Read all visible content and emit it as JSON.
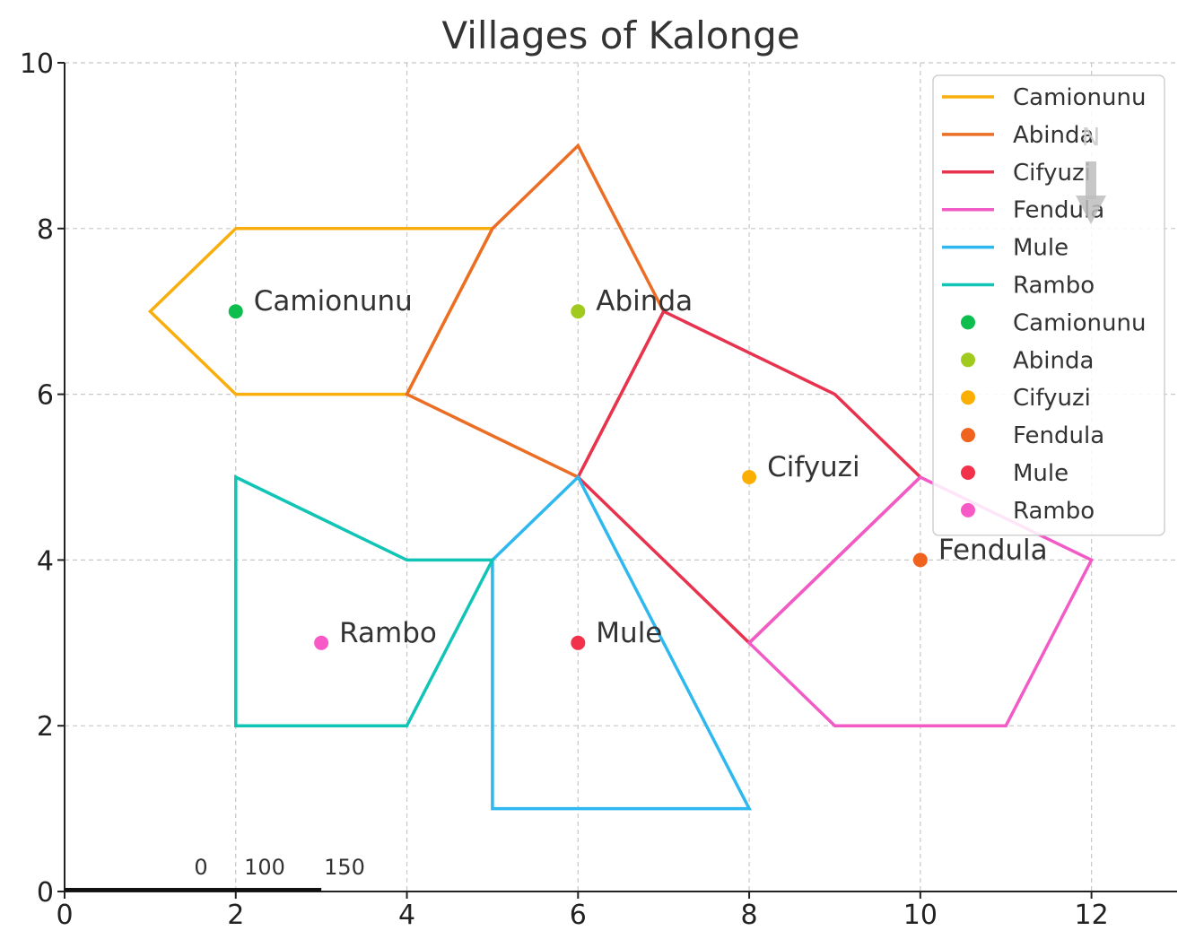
{
  "map": {
    "title": "Villages of Kalonge",
    "x_ticks": [
      "0",
      "2",
      "4",
      "6",
      "8",
      "10",
      "12"
    ],
    "y_ticks": [
      "0",
      "2",
      "4",
      "6",
      "8",
      "10"
    ],
    "xlim": [
      0,
      13
    ],
    "ylim": [
      0,
      10
    ],
    "grid": true,
    "legend_placement": "top-right",
    "compass_label": "N",
    "scale_bar": {
      "labels": [
        "0",
        "100",
        "150"
      ],
      "x_start": 0,
      "x_end": 3
    },
    "regions": [
      {
        "name": "Camionunu",
        "color": "#F9AE0D",
        "polygon": [
          [
            1,
            7
          ],
          [
            2,
            8
          ],
          [
            5,
            8
          ],
          [
            4,
            6
          ],
          [
            2,
            6
          ]
        ]
      },
      {
        "name": "Abinda",
        "color": "#EC6E25",
        "polygon": [
          [
            4,
            6
          ],
          [
            5,
            8
          ],
          [
            6,
            9
          ],
          [
            7,
            7
          ],
          [
            6,
            5
          ]
        ]
      },
      {
        "name": "Cifyuzi",
        "color": "#E8334F",
        "polygon": [
          [
            6,
            5
          ],
          [
            7,
            7
          ],
          [
            9,
            6
          ],
          [
            10,
            5
          ],
          [
            8,
            3
          ]
        ]
      },
      {
        "name": "Fendula",
        "color": "#F25BC5",
        "polygon": [
          [
            8,
            3
          ],
          [
            10,
            5
          ],
          [
            12,
            4
          ],
          [
            11,
            2
          ],
          [
            9,
            2
          ]
        ]
      },
      {
        "name": "Mule",
        "color": "#2EB8EF",
        "polygon": [
          [
            5,
            4
          ],
          [
            6,
            5
          ],
          [
            8,
            1
          ],
          [
            5,
            1
          ]
        ]
      },
      {
        "name": "Rambo",
        "color": "#10C4B6",
        "polygon": [
          [
            2,
            5
          ],
          [
            4,
            4
          ],
          [
            5,
            4
          ],
          [
            4,
            2
          ],
          [
            2,
            2
          ]
        ]
      }
    ],
    "villages": [
      {
        "name": "Camionunu",
        "color": "#0DBE4E",
        "x": 2,
        "y": 7
      },
      {
        "name": "Abinda",
        "color": "#A0CB1E",
        "x": 6,
        "y": 7
      },
      {
        "name": "Cifyuzi",
        "color": "#FBAF05",
        "x": 8,
        "y": 5
      },
      {
        "name": "Fendula",
        "color": "#F0631E",
        "x": 10,
        "y": 4
      },
      {
        "name": "Mule",
        "color": "#F2314B",
        "x": 6,
        "y": 3
      },
      {
        "name": "Rambo",
        "color": "#F75AC6",
        "x": 3,
        "y": 3
      }
    ]
  }
}
